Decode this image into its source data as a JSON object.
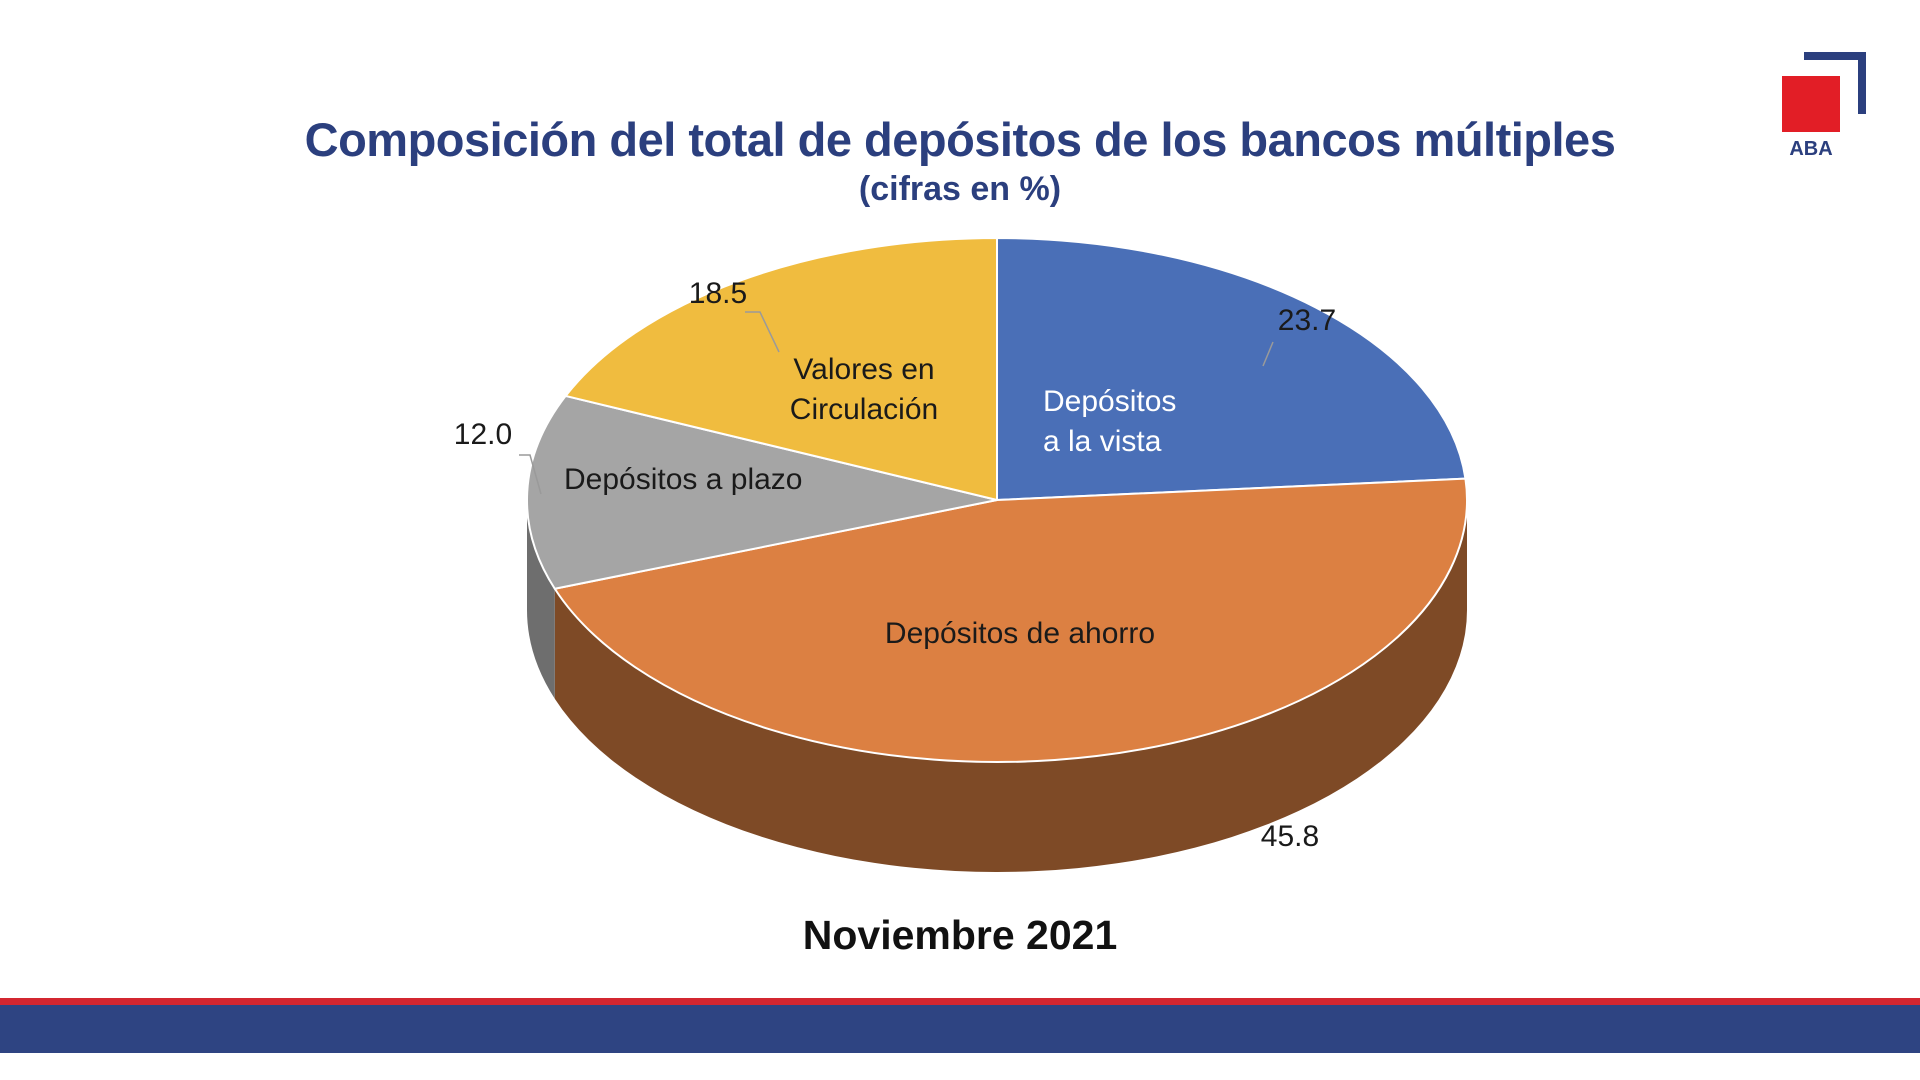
{
  "header": {
    "title": "Composición del total de depósitos de los bancos múltiples",
    "subtitle": "(cifras en %)"
  },
  "logo": {
    "text": "ABA"
  },
  "caption": "Noviembre 2021",
  "chart_data": {
    "type": "pie",
    "style": "3d",
    "title": "Composición del total de depósitos de los bancos múltiples",
    "subtitle": "(cifras en %)",
    "slices": [
      {
        "name": "Depósitos a la vista",
        "label_lines": [
          "Depósitos",
          "a la vista"
        ],
        "value": 23.7,
        "value_label": "23.7",
        "color": "#4a6fb7",
        "side_color": "#2f4f8a"
      },
      {
        "name": "Depósitos de ahorro",
        "label_lines": [
          "Depósitos de ahorro"
        ],
        "value": 45.8,
        "value_label": "45.8",
        "color": "#dc8042",
        "side_color": "#7e4a26"
      },
      {
        "name": "Depósitos a plazo",
        "label_lines": [
          "Depósitos a plazo"
        ],
        "value": 12.0,
        "value_label": "12.0",
        "color": "#a5a5a5",
        "side_color": "#6e6e6e"
      },
      {
        "name": "Valores en Circulación",
        "label_lines": [
          "Valores en",
          "Circulación"
        ],
        "value": 18.5,
        "value_label": "18.5",
        "color": "#f0bc3f",
        "side_color": "#a07d2a"
      }
    ],
    "legend": "none",
    "unit": "%"
  }
}
